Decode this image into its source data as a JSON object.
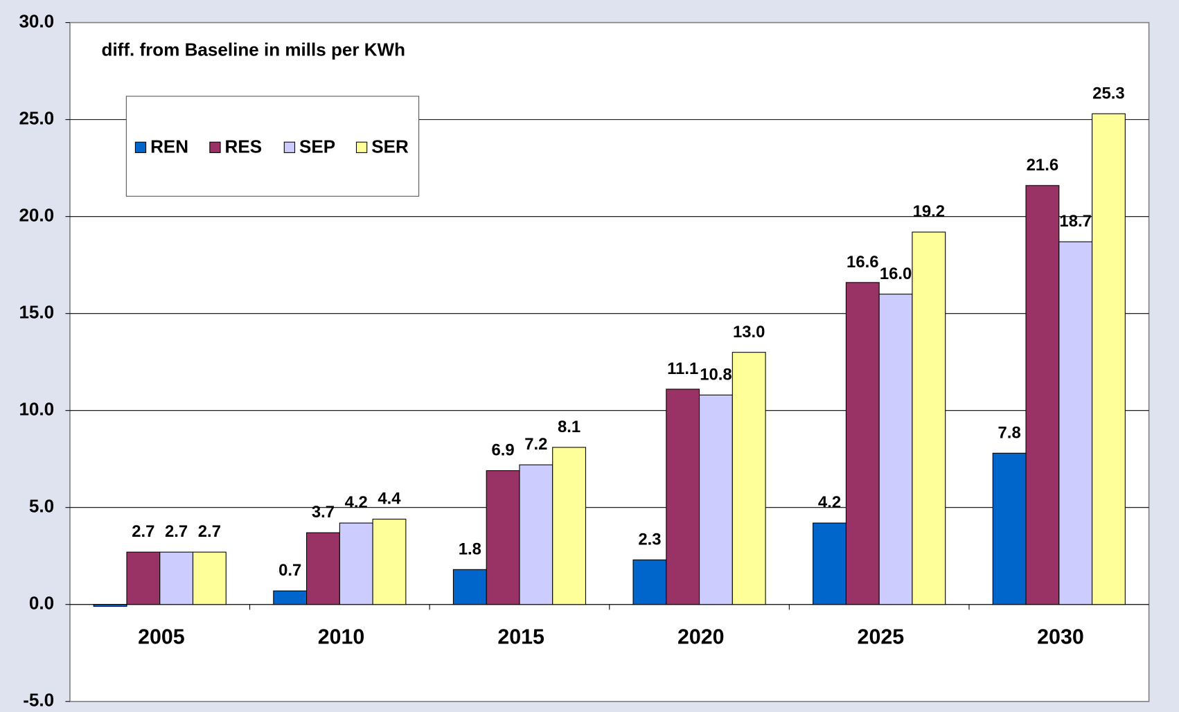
{
  "chart_data": {
    "type": "bar",
    "subtitle": "diff. from Baseline in mills per KWh",
    "categories": [
      "2005",
      "2010",
      "2015",
      "2020",
      "2025",
      "2030"
    ],
    "series": [
      {
        "name": "REN",
        "color": "#0066cc",
        "values": [
          -0.1,
          0.7,
          1.8,
          2.3,
          4.2,
          7.8
        ],
        "value_labels": [
          null,
          "0.7",
          "1.8",
          "2.3",
          "4.2",
          "7.8"
        ]
      },
      {
        "name": "RES",
        "color": "#993366",
        "values": [
          2.7,
          3.7,
          6.9,
          11.1,
          16.6,
          21.6
        ],
        "value_labels": [
          "2.7",
          "3.7",
          "6.9",
          "11.1",
          "16.6",
          "21.6"
        ]
      },
      {
        "name": "SEP",
        "color": "#ccccff",
        "values": [
          2.7,
          4.2,
          7.2,
          10.8,
          16.0,
          18.7
        ],
        "value_labels": [
          "2.7",
          "4.2",
          "7.2",
          "10.8",
          "16.0",
          "18.7"
        ]
      },
      {
        "name": "SER",
        "color": "#ffff99",
        "values": [
          2.7,
          4.4,
          8.1,
          13.0,
          19.2,
          25.3
        ],
        "value_labels": [
          "2.7",
          "4.4",
          "8.1",
          "13.0",
          "19.2",
          "25.3"
        ]
      }
    ],
    "ylim": [
      -5,
      30
    ],
    "yticks": [
      {
        "value": -5,
        "label": "-5.0"
      },
      {
        "value": 0,
        "label": "0.0"
      },
      {
        "value": 5,
        "label": "5.0"
      },
      {
        "value": 10,
        "label": "10.0"
      },
      {
        "value": 15,
        "label": "15.0"
      },
      {
        "value": 20,
        "label": "20.0"
      },
      {
        "value": 25,
        "label": "25.0"
      },
      {
        "value": 30,
        "label": "30.0"
      }
    ],
    "grid": true,
    "legend": "upper left"
  }
}
